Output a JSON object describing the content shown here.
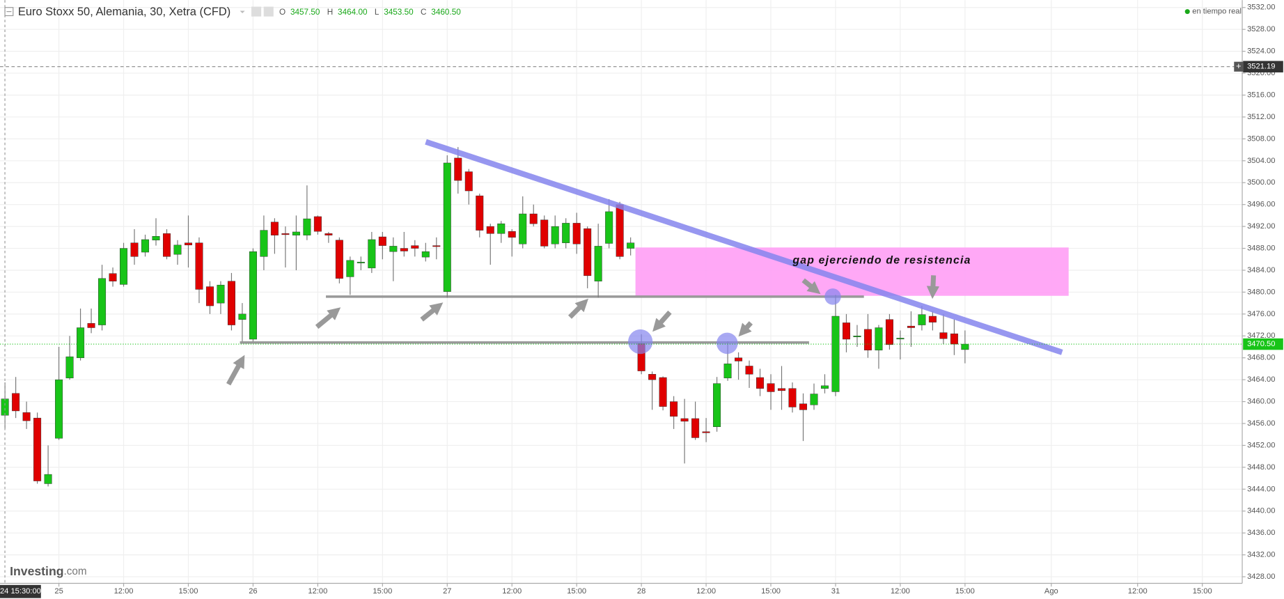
{
  "header": {
    "title": "Euro Stoxx 50, Alemania, 30, Xetra (CFD)",
    "ohlc": [
      {
        "key": "O",
        "value": "3457.50"
      },
      {
        "key": "H",
        "value": "3464.00"
      },
      {
        "key": "L",
        "value": "3453.50"
      },
      {
        "key": "C",
        "value": "3460.50"
      }
    ],
    "status": "en tiempo real"
  },
  "logo": {
    "brand": "Investing",
    "suffix": ".com"
  },
  "annotation": "gap ejerciendo de resistencia",
  "chart_data": {
    "type": "candlestick",
    "open": [
      3457.5,
      3461.5,
      3458,
      3457,
      3445,
      3453.3,
      3464.3,
      3468,
      3474.3,
      3474,
      3483.4,
      3481.4,
      3489,
      3487.3,
      3489.5,
      3490.7,
      3486.9,
      3489,
      3489,
      3481,
      3478,
      3482,
      3475,
      3471.4,
      3486.5,
      3492.8,
      3490.7,
      3490.4,
      3490.4,
      3493.8,
      3490.7,
      3489.5,
      3482.8,
      3485.5,
      3484.4,
      3490.1,
      3487.4,
      3488,
      3488.5,
      3486.4,
      3488.5,
      3480.1,
      3504.5,
      3502,
      3497.6,
      3492,
      3490.7,
      3491.1,
      3488.8,
      3494.3,
      3493.2,
      3488.8,
      3489,
      3492.6,
      3491.6,
      3482,
      3488.9,
      3496,
      3488,
      3470.6,
      3465,
      3464.4,
      3460,
      3456.9,
      3456.9,
      3454.5,
      3455.4,
      3464.3,
      3468,
      3466.5,
      3464.4,
      3463.3,
      3462.4,
      3462.4,
      3459.6,
      3459.4,
      3462.4,
      3461.8,
      3474.4,
      3472,
      3473.2,
      3469.4,
      3475,
      3471.6,
      3473.8,
      3474,
      3475.6,
      3472.6,
      3472.4,
      3469.5
    ],
    "high": [
      3463.5,
      3464.5,
      3460,
      3458,
      3452,
      3470,
      3472,
      3477,
      3477,
      3485,
      3484.5,
      3489,
      3491.5,
      3490.5,
      3493.5,
      3491.5,
      3489.5,
      3494,
      3490,
      3482,
      3482,
      3483.5,
      3478,
      3488,
      3494,
      3493.5,
      3492,
      3494,
      3499.5,
      3494,
      3491,
      3490,
      3486.5,
      3486.5,
      3491,
      3491,
      3490,
      3491,
      3489.5,
      3489,
      3490,
      3505,
      3506.5,
      3502.5,
      3498,
      3492.5,
      3493,
      3491.5,
      3497.5,
      3496,
      3494,
      3494,
      3493.5,
      3494.5,
      3492,
      3492.5,
      3497,
      3496.5,
      3490,
      3472.3,
      3465.5,
      3464.6,
      3461,
      3460.5,
      3460,
      3457,
      3464.5,
      3471,
      3469,
      3467.5,
      3466,
      3465,
      3466.5,
      3463.5,
      3461.5,
      3463.3,
      3465,
      3479.5,
      3476,
      3474,
      3476,
      3474,
      3476,
      3473,
      3476.5,
      3477.5,
      3476.5,
      3476,
      3475,
      3473
    ],
    "low": [
      3455,
      3457,
      3455,
      3445,
      3444.5,
      3453,
      3464,
      3467.5,
      3472.5,
      3473,
      3481,
      3481,
      3485,
      3486.5,
      3488.5,
      3486,
      3485,
      3484.5,
      3478,
      3476,
      3476,
      3473,
      3471,
      3471,
      3484,
      3487,
      3484.5,
      3484,
      3489.5,
      3490.5,
      3489,
      3481.6,
      3479.5,
      3484,
      3483.5,
      3486,
      3482,
      3486.5,
      3486.5,
      3485.6,
      3486,
      3479,
      3498,
      3496,
      3490,
      3485,
      3489,
      3486.5,
      3488,
      3492,
      3488,
      3488,
      3488,
      3487,
      3480.7,
      3479,
      3488,
      3486,
      3486.7,
      3465,
      3458.5,
      3458.4,
      3455,
      3448.7,
      3453,
      3452.6,
      3454.5,
      3463.8,
      3464,
      3462.5,
      3461,
      3458.5,
      3458.5,
      3458,
      3452.8,
      3458.5,
      3461.5,
      3461,
      3469,
      3470,
      3468,
      3466,
      3469.5,
      3467.7,
      3470,
      3473,
      3473,
      3470.5,
      3468.5,
      3467
    ],
    "close": [
      3460.5,
      3458.3,
      3456.5,
      3445.5,
      3446.7,
      3464,
      3468.2,
      3473.5,
      3473.5,
      3482.5,
      3482,
      3488,
      3486.5,
      3489.6,
      3490.2,
      3486.5,
      3488.6,
      3488.6,
      3480.5,
      3477.5,
      3481.3,
      3474,
      3476,
      3487.4,
      3491.3,
      3490.4,
      3490.5,
      3491,
      3493.4,
      3491.1,
      3490.4,
      3482.5,
      3485.8,
      3485.5,
      3489.6,
      3488.5,
      3488.4,
      3487.5,
      3488,
      3487.4,
      3488.4,
      3503.6,
      3500.4,
      3498.5,
      3491.3,
      3490.7,
      3492.5,
      3490,
      3494.3,
      3492.5,
      3488.4,
      3492,
      3492.6,
      3488.8,
      3483,
      3488.4,
      3494.7,
      3486.5,
      3489,
      3465.6,
      3464,
      3459.1,
      3457.3,
      3456.4,
      3453.4,
      3454.3,
      3463.3,
      3466.9,
      3467.4,
      3465,
      3462.4,
      3461.8,
      3462,
      3459,
      3458.5,
      3461.4,
      3462.9,
      3475.6,
      3471.4,
      3472,
      3469.4,
      3473.5,
      3470.4,
      3471.6,
      3473.5,
      3475.9,
      3474.5,
      3471.5,
      3470.5,
      3470.5
    ],
    "up_color": "#18c418",
    "down_color": "#e00000",
    "xlim": [
      -0.46,
      114.7
    ],
    "xticks": [
      {
        "value": 5,
        "label": "25"
      },
      {
        "value": 11,
        "label": "12:00"
      },
      {
        "value": 17,
        "label": "15:00"
      },
      {
        "value": 23,
        "label": "26"
      },
      {
        "value": 29,
        "label": "12:00"
      },
      {
        "value": 35,
        "label": "15:00"
      },
      {
        "value": 41,
        "label": "27"
      },
      {
        "value": 47,
        "label": "12:00"
      },
      {
        "value": 53,
        "label": "15:00"
      },
      {
        "value": 59,
        "label": "28"
      },
      {
        "value": 65,
        "label": "12:00"
      },
      {
        "value": 71,
        "label": "15:00"
      },
      {
        "value": 77,
        "label": "31"
      },
      {
        "value": 83,
        "label": "12:00"
      },
      {
        "value": 89,
        "label": "15:00"
      },
      {
        "value": 97,
        "label": "Ago"
      },
      {
        "value": 105,
        "label": "12:00"
      },
      {
        "value": 111,
        "label": "15:00"
      }
    ],
    "ylim": [
      3426.8,
      3533.35
    ],
    "yticks": [
      {
        "value": 3428,
        "label": "3428.00"
      },
      {
        "value": 3432,
        "label": "3432.00"
      },
      {
        "value": 3436,
        "label": "3436.00"
      },
      {
        "value": 3440,
        "label": "3440.00"
      },
      {
        "value": 3444,
        "label": "3444.00"
      },
      {
        "value": 3448,
        "label": "3448.00"
      },
      {
        "value": 3452,
        "label": "3452.00"
      },
      {
        "value": 3456,
        "label": "3456.00"
      },
      {
        "value": 3460,
        "label": "3460.00"
      },
      {
        "value": 3464,
        "label": "3464.00"
      },
      {
        "value": 3468,
        "label": "3468.00"
      },
      {
        "value": 3472,
        "label": "3472.00"
      },
      {
        "value": 3476,
        "label": "3476.00"
      },
      {
        "value": 3480,
        "label": "3480.00"
      },
      {
        "value": 3484,
        "label": "3484.00"
      },
      {
        "value": 3488,
        "label": "3488.00"
      },
      {
        "value": 3492,
        "label": "3492.00"
      },
      {
        "value": 3496,
        "label": "3496.00"
      },
      {
        "value": 3500,
        "label": "3500.00"
      },
      {
        "value": 3504,
        "label": "3504.00"
      },
      {
        "value": 3508,
        "label": "3508.00"
      },
      {
        "value": 3512,
        "label": "3512.00"
      },
      {
        "value": 3516,
        "label": "3516.00"
      },
      {
        "value": 3520,
        "label": "3520.00"
      },
      {
        "value": 3524,
        "label": "3524.00"
      },
      {
        "value": 3528,
        "label": "3528.00"
      },
      {
        "value": 3532,
        "label": "3532.00"
      }
    ],
    "grid": true,
    "crosshair": {
      "x_label": "24 15:30:00",
      "price": 3521.19
    },
    "last_price": {
      "value": 3470.5,
      "label": "3470.50"
    }
  }
}
